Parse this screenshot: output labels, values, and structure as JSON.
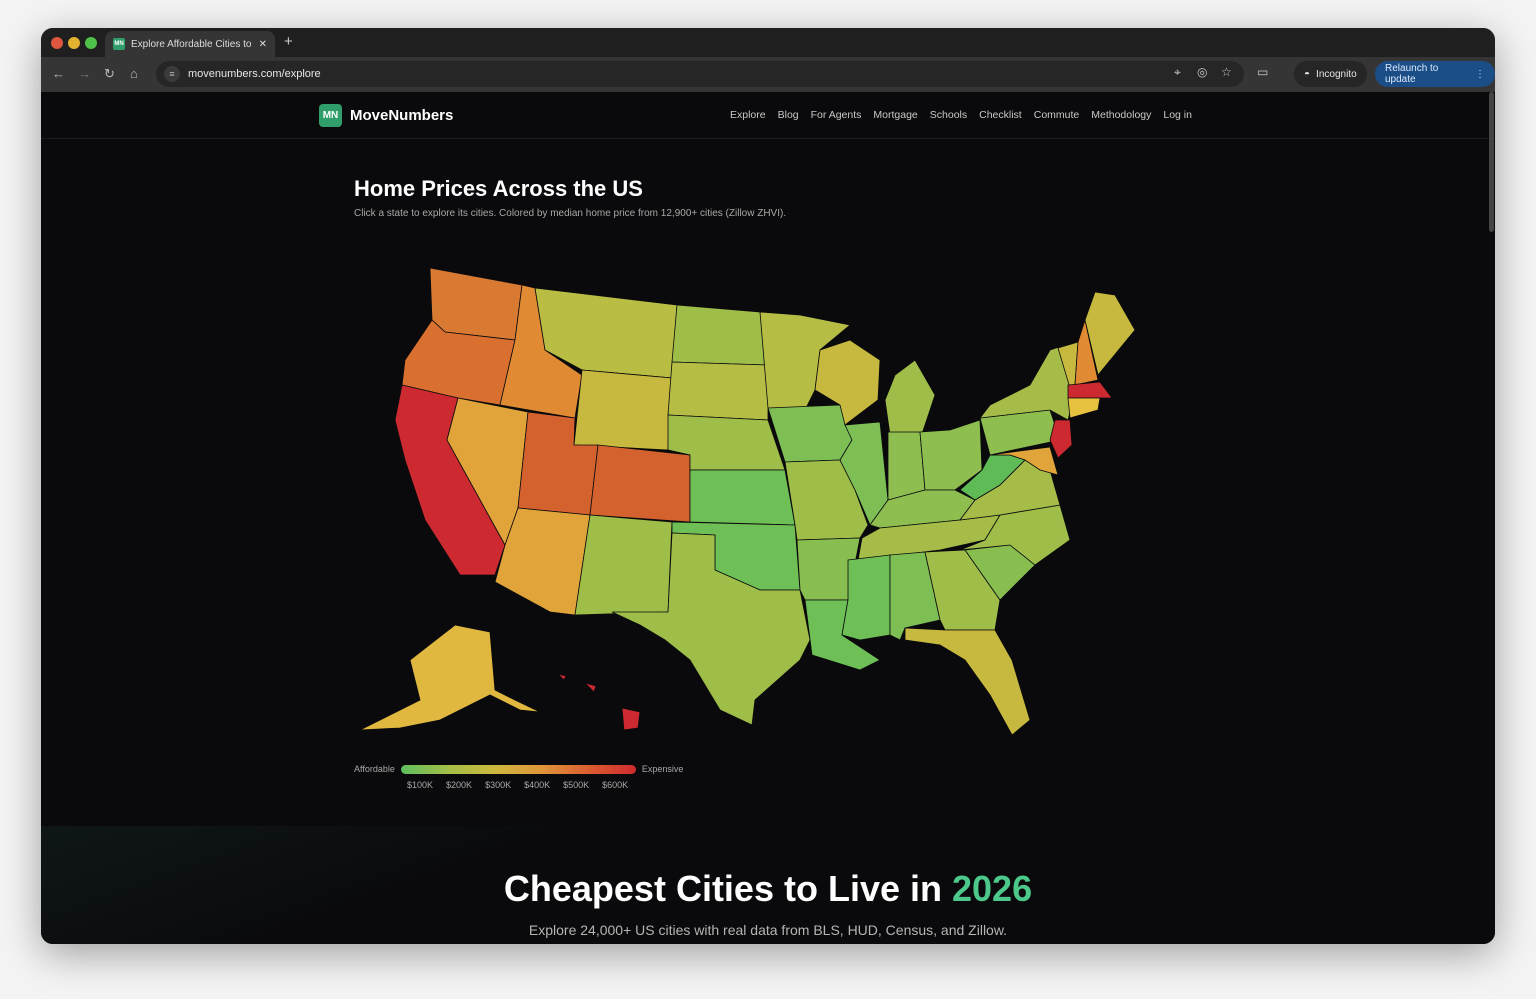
{
  "browser": {
    "tab_title": "Explore Affordable Cities to Li",
    "tab_favicon": "MN",
    "url": "movenumbers.com/explore",
    "incognito_label": "Incognito",
    "relaunch_label": "Relaunch to update"
  },
  "site": {
    "logo_mark": "MN",
    "logo_name": "MoveNumbers",
    "nav": [
      "Explore",
      "Blog",
      "For Agents",
      "Mortgage",
      "Schools",
      "Checklist",
      "Commute",
      "Methodology",
      "Log in"
    ]
  },
  "map_section": {
    "title": "Home Prices Across the US",
    "subtitle": "Click a state to explore its cities. Colored by median home price from 12,900+ cities (Zillow ZHVI).",
    "legend_low": "Affordable",
    "legend_high": "Expensive",
    "legend_ticks": [
      "$100K",
      "$200K",
      "$300K",
      "$400K",
      "$500K",
      "$600K"
    ],
    "state_colors": {
      "WA": "#d97a33",
      "OR": "#d9702f",
      "CA": "#cc2a30",
      "NV": "#e0a43a",
      "ID": "#e08a33",
      "MT": "#b9bd44",
      "WY": "#c7b93f",
      "UT": "#d4622e",
      "CO": "#d4622e",
      "AZ": "#e0a43a",
      "NM": "#9ebd49",
      "ND": "#9ebd49",
      "SD": "#b5bd45",
      "NE": "#9ebd49",
      "KS": "#6fbf57",
      "OK": "#6fbf57",
      "TX": "#9ebd49",
      "MN": "#b5bd45",
      "IA": "#7dbf55",
      "MO": "#9ebd49",
      "AR": "#88be50",
      "LA": "#6fbf57",
      "WI": "#c7b93f",
      "IL": "#7dbf55",
      "MI": "#9ebd49",
      "IN": "#8fbe50",
      "OH": "#8fbe50",
      "KY": "#8fbe50",
      "TN": "#a5bd48",
      "MS": "#6fbf57",
      "AL": "#7dbf55",
      "GA": "#9ebd49",
      "FL": "#c7b93f",
      "SC": "#88be50",
      "NC": "#9ebd49",
      "VA": "#a5bd48",
      "WV": "#5fbb55",
      "PA": "#8fbe50",
      "NY": "#a5bd48",
      "NJ": "#cc2a30",
      "MD": "#e0a43a",
      "VT": "#c7b93f",
      "NH": "#e08a33",
      "ME": "#c7b93f",
      "MA": "#cc2a30",
      "CT": "#e6c23e",
      "AK": "#e0b840",
      "HI": "#cc2a30"
    }
  },
  "hero": {
    "title_prefix": "Cheapest Cities to Live in ",
    "title_year": "2026",
    "subtitle": "Explore 24,000+ US cities with real data from BLS, HUD, Census, and Zillow."
  }
}
